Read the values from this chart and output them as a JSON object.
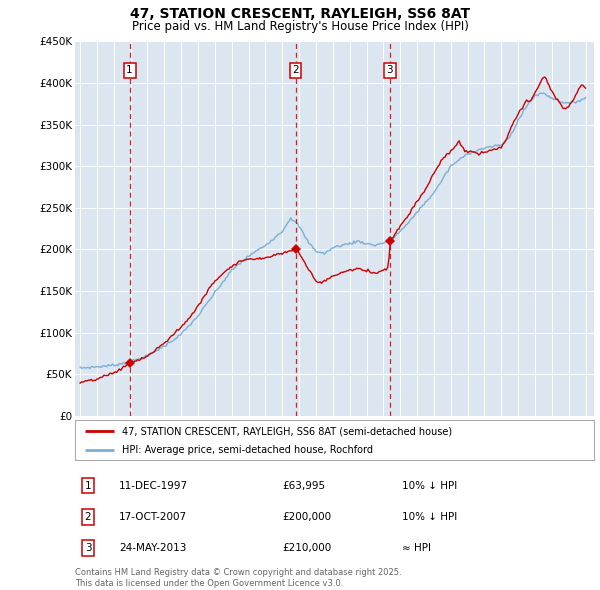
{
  "title": "47, STATION CRESCENT, RAYLEIGH, SS6 8AT",
  "subtitle": "Price paid vs. HM Land Registry's House Price Index (HPI)",
  "background_color": "#dce6f0",
  "ylim": [
    0,
    450000
  ],
  "yticks": [
    0,
    50000,
    100000,
    150000,
    200000,
    250000,
    300000,
    350000,
    400000,
    450000
  ],
  "ytick_labels": [
    "£0",
    "£50K",
    "£100K",
    "£150K",
    "£200K",
    "£250K",
    "£300K",
    "£350K",
    "£400K",
    "£450K"
  ],
  "xlim_start": 1994.7,
  "xlim_end": 2025.5,
  "purchase_dates": [
    1997.94,
    2007.79,
    2013.39
  ],
  "purchase_prices": [
    63995,
    200000,
    210000
  ],
  "purchase_labels": [
    "1",
    "2",
    "3"
  ],
  "purchase_date_labels": [
    "11-DEC-1997",
    "17-OCT-2007",
    "24-MAY-2013"
  ],
  "purchase_price_labels": [
    "£63,995",
    "£200,000",
    "£210,000"
  ],
  "purchase_hpi_labels": [
    "10% ↓ HPI",
    "10% ↓ HPI",
    "≈ HPI"
  ],
  "legend_property": "47, STATION CRESCENT, RAYLEIGH, SS6 8AT (semi-detached house)",
  "legend_hpi": "HPI: Average price, semi-detached house, Rochford",
  "footer": "Contains HM Land Registry data © Crown copyright and database right 2025.\nThis data is licensed under the Open Government Licence v3.0.",
  "line_color_property": "#cc0000",
  "line_color_hpi": "#7bafd4",
  "marker_color": "#cc0000",
  "dashed_line_color": "#cc0000"
}
